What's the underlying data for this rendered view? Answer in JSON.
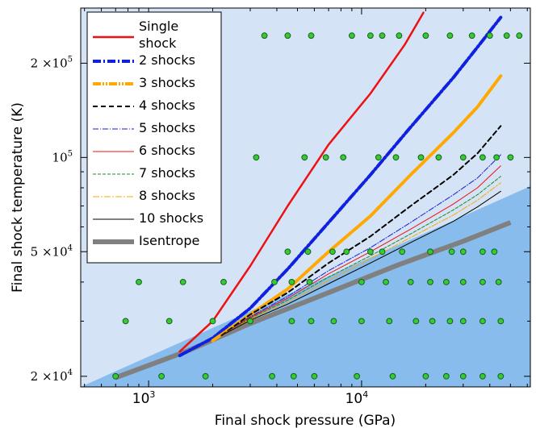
{
  "chart_data": {
    "type": "line",
    "xlabel": "Final shock pressure (GPa)",
    "ylabel": "Final shock temperature (K)",
    "x_scale": "log",
    "y_scale": "log",
    "xlim": [
      480,
      62000
    ],
    "ylim": [
      18500,
      300000
    ],
    "x_ticks": [
      {
        "value": 1000,
        "base": "10",
        "exp": "3"
      },
      {
        "value": 10000,
        "base": "10",
        "exp": "4"
      }
    ],
    "y_ticks": [
      {
        "value": 20000,
        "mant": "2",
        "base": "×10",
        "exp": "4"
      },
      {
        "value": 50000,
        "mant": "5",
        "base": "×10",
        "exp": "4"
      },
      {
        "value": 100000,
        "mant": "",
        "base": "10",
        "exp": "5"
      },
      {
        "value": 200000,
        "mant": "2",
        "base": "×10",
        "exp": "5"
      }
    ],
    "regions": [
      {
        "name": "above-isentrope",
        "color": "#d4e3f6"
      },
      {
        "name": "below-isentrope",
        "color": "#87bcec"
      }
    ],
    "series": [
      {
        "name": "Single shock",
        "label_lines": [
          "Single",
          "shock"
        ],
        "color": "#ee1111",
        "width": 2.5,
        "dash": "",
        "points": [
          [
            1400,
            24000
          ],
          [
            2000,
            30000
          ],
          [
            3000,
            45000
          ],
          [
            4500,
            70000
          ],
          [
            7000,
            110000
          ],
          [
            11000,
            160000
          ],
          [
            16000,
            230000
          ],
          [
            19500,
            290000
          ]
        ]
      },
      {
        "name": "2 shocks",
        "label_lines": [
          "2 shocks"
        ],
        "color": "#1020e0",
        "width": 4,
        "dash": "10,3,2,3",
        "points": [
          [
            1400,
            23300
          ],
          [
            2000,
            26500
          ],
          [
            3000,
            33000
          ],
          [
            4500,
            44000
          ],
          [
            7000,
            62000
          ],
          [
            11000,
            88000
          ],
          [
            17000,
            125000
          ],
          [
            27000,
            180000
          ],
          [
            35000,
            225000
          ],
          [
            45000,
            280000
          ]
        ]
      },
      {
        "name": "3 shocks",
        "label_lines": [
          "3 shocks"
        ],
        "color": "#ffa800",
        "width": 4,
        "dash": "10,2,2,2,2,2",
        "points": [
          [
            2000,
            26000
          ],
          [
            3000,
            31500
          ],
          [
            4500,
            38000
          ],
          [
            7000,
            50000
          ],
          [
            11000,
            65000
          ],
          [
            17000,
            88000
          ],
          [
            27000,
            120000
          ],
          [
            35000,
            145000
          ],
          [
            45000,
            182000
          ]
        ]
      },
      {
        "name": "4 shocks",
        "label_lines": [
          "4 shocks"
        ],
        "color": "#000000",
        "width": 2,
        "dash": "6,4",
        "points": [
          [
            2200,
            27000
          ],
          [
            3000,
            31500
          ],
          [
            4500,
            37000
          ],
          [
            7000,
            46000
          ],
          [
            11000,
            56000
          ],
          [
            17000,
            70000
          ],
          [
            27000,
            88000
          ],
          [
            35000,
            103000
          ],
          [
            45000,
            126000
          ]
        ]
      },
      {
        "name": "5 shocks",
        "label_lines": [
          "5 shocks"
        ],
        "color": "#1a20cc",
        "width": 1,
        "dash": "7,2,1,2",
        "points": [
          [
            2200,
            27000
          ],
          [
            3000,
            31000
          ],
          [
            4500,
            36000
          ],
          [
            7000,
            43500
          ],
          [
            11000,
            51500
          ],
          [
            17000,
            62000
          ],
          [
            27000,
            76000
          ],
          [
            35000,
            86000
          ],
          [
            45000,
            102000
          ]
        ]
      },
      {
        "name": "6 shocks",
        "label_lines": [
          "6 shocks"
        ],
        "color": "#ee1111",
        "width": 1,
        "dash": "",
        "points": [
          [
            2200,
            27000
          ],
          [
            3000,
            30800
          ],
          [
            4500,
            35500
          ],
          [
            7000,
            42500
          ],
          [
            11000,
            50000
          ],
          [
            17000,
            59000
          ],
          [
            27000,
            71000
          ],
          [
            35000,
            80000
          ],
          [
            45000,
            94000
          ]
        ]
      },
      {
        "name": "7 shocks",
        "label_lines": [
          "7 shocks"
        ],
        "color": "#1e8a1e",
        "width": 1,
        "dash": "4,2",
        "points": [
          [
            2200,
            27000
          ],
          [
            3000,
            30600
          ],
          [
            4500,
            35000
          ],
          [
            7000,
            41500
          ],
          [
            11000,
            48500
          ],
          [
            17000,
            57000
          ],
          [
            27000,
            68000
          ],
          [
            35000,
            76000
          ],
          [
            45000,
            87000
          ]
        ]
      },
      {
        "name": "8 shocks",
        "label_lines": [
          "8 shocks"
        ],
        "color": "#ffa800",
        "width": 1,
        "dash": "8,2,2,2",
        "points": [
          [
            2200,
            27000
          ],
          [
            3000,
            30400
          ],
          [
            4500,
            34500
          ],
          [
            7000,
            40500
          ],
          [
            11000,
            47500
          ],
          [
            17000,
            55500
          ],
          [
            27000,
            65500
          ],
          [
            35000,
            73000
          ],
          [
            45000,
            83000
          ]
        ]
      },
      {
        "name": "10 shocks",
        "label_lines": [
          "10 shocks"
        ],
        "color": "#000000",
        "width": 1,
        "dash": "",
        "points": [
          [
            2200,
            27000
          ],
          [
            3000,
            30200
          ],
          [
            4500,
            34000
          ],
          [
            7000,
            39500
          ],
          [
            11000,
            46000
          ],
          [
            17000,
            53500
          ],
          [
            27000,
            62500
          ],
          [
            35000,
            69500
          ],
          [
            45000,
            78000
          ]
        ]
      },
      {
        "name": "Isentrope",
        "label_lines": [
          "Isentrope"
        ],
        "color": "#808080",
        "width": 6,
        "dash": "",
        "points": [
          [
            700,
            19800
          ],
          [
            1500,
            24000
          ],
          [
            3000,
            29500
          ],
          [
            7000,
            37000
          ],
          [
            15000,
            45500
          ],
          [
            30000,
            54000
          ],
          [
            50000,
            62000
          ]
        ]
      }
    ],
    "scatter": {
      "fill": "#33cc33",
      "stroke": "#1a5c1a",
      "points": [
        [
          3500,
          245000
        ],
        [
          4500,
          245000
        ],
        [
          5800,
          245000
        ],
        [
          9000,
          245000
        ],
        [
          11000,
          245000
        ],
        [
          12500,
          245000
        ],
        [
          15000,
          245000
        ],
        [
          20000,
          245000
        ],
        [
          26000,
          245000
        ],
        [
          33000,
          245000
        ],
        [
          40000,
          245000
        ],
        [
          48000,
          245000
        ],
        [
          55000,
          245000
        ],
        [
          3200,
          100000
        ],
        [
          5400,
          100000
        ],
        [
          6800,
          100000
        ],
        [
          8200,
          100000
        ],
        [
          12000,
          100000
        ],
        [
          14500,
          100000
        ],
        [
          19000,
          100000
        ],
        [
          23000,
          100000
        ],
        [
          30000,
          100000
        ],
        [
          37000,
          100000
        ],
        [
          43000,
          100000
        ],
        [
          50000,
          100000
        ],
        [
          4500,
          50000
        ],
        [
          5600,
          50000
        ],
        [
          7300,
          50000
        ],
        [
          8500,
          50000
        ],
        [
          11000,
          50000
        ],
        [
          12500,
          50000
        ],
        [
          15500,
          50000
        ],
        [
          21000,
          50000
        ],
        [
          26500,
          50000
        ],
        [
          30000,
          50000
        ],
        [
          37000,
          50000
        ],
        [
          42000,
          50000
        ],
        [
          900,
          40000
        ],
        [
          1450,
          40000
        ],
        [
          2250,
          40000
        ],
        [
          3900,
          40000
        ],
        [
          4700,
          40000
        ],
        [
          5700,
          40000
        ],
        [
          10000,
          40000
        ],
        [
          13000,
          40000
        ],
        [
          17000,
          40000
        ],
        [
          21000,
          40000
        ],
        [
          25000,
          40000
        ],
        [
          30000,
          40000
        ],
        [
          37000,
          40000
        ],
        [
          44000,
          40000
        ],
        [
          780,
          30000
        ],
        [
          1250,
          30000
        ],
        [
          2000,
          30000
        ],
        [
          3000,
          30000
        ],
        [
          4700,
          30000
        ],
        [
          5800,
          30000
        ],
        [
          7400,
          30000
        ],
        [
          10000,
          30000
        ],
        [
          13500,
          30000
        ],
        [
          18000,
          30000
        ],
        [
          21500,
          30000
        ],
        [
          26000,
          30000
        ],
        [
          30000,
          30000
        ],
        [
          37000,
          30000
        ],
        [
          45000,
          30000
        ],
        [
          700,
          20000
        ],
        [
          1150,
          20000
        ],
        [
          1850,
          20000
        ],
        [
          3800,
          20000
        ],
        [
          4800,
          20000
        ],
        [
          6000,
          20000
        ],
        [
          9500,
          20000
        ],
        [
          14000,
          20000
        ],
        [
          20000,
          20000
        ],
        [
          25000,
          20000
        ],
        [
          30000,
          20000
        ],
        [
          37000,
          20000
        ],
        [
          45000,
          20000
        ]
      ]
    }
  }
}
